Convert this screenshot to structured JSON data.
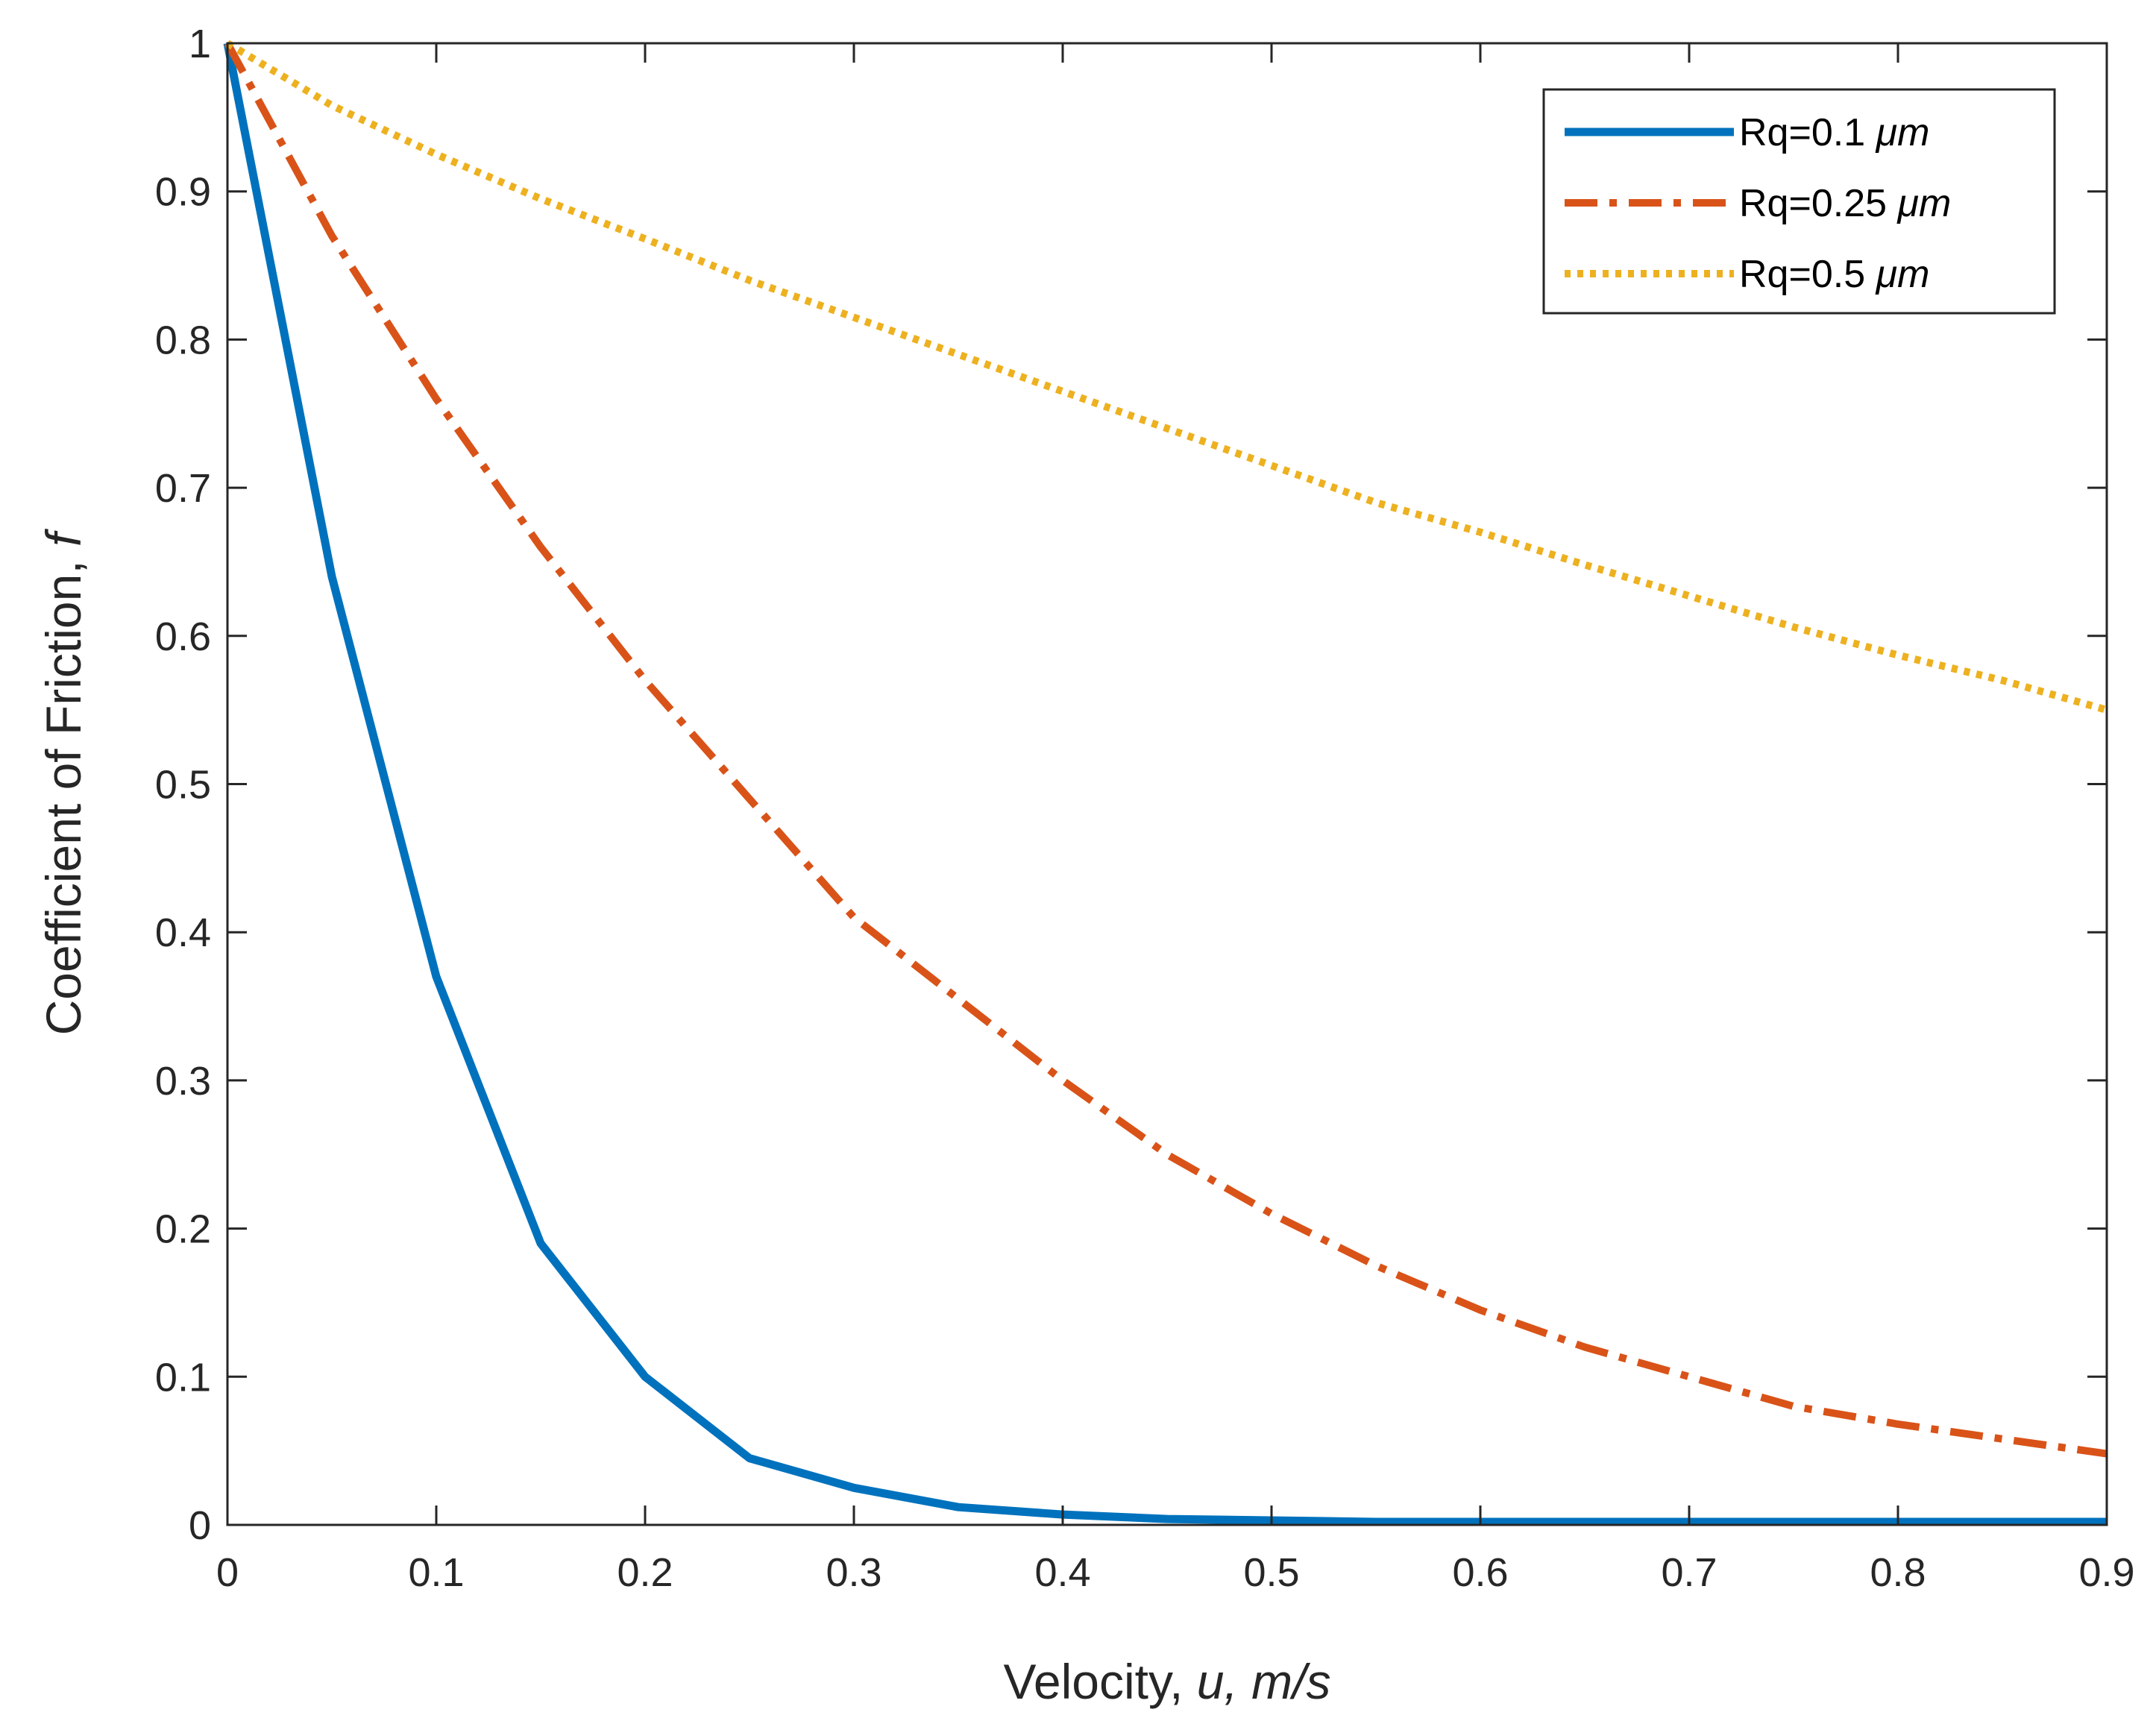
{
  "chart_data": {
    "type": "line",
    "title": "",
    "xlabel": {
      "prefix": "Velocity,  ",
      "var": "u, m/s"
    },
    "ylabel": {
      "prefix": "Coefficient of Friction,  ",
      "var": "f"
    },
    "xlim": [
      0,
      0.9
    ],
    "ylim": [
      0,
      1
    ],
    "xticks": [
      0,
      0.1,
      0.2,
      0.3,
      0.4,
      0.5,
      0.6,
      0.7,
      0.8,
      0.9
    ],
    "xtick_labels": [
      "0",
      "0.1",
      "0.2",
      "0.3",
      "0.4",
      "0.5",
      "0.6",
      "0.7",
      "0.8",
      "0.9"
    ],
    "yticks": [
      0,
      0.1,
      0.2,
      0.3,
      0.4,
      0.5,
      0.6,
      0.7,
      0.8,
      0.9,
      1
    ],
    "ytick_labels": [
      "0",
      "0.1",
      "0.2",
      "0.3",
      "0.4",
      "0.5",
      "0.6",
      "0.7",
      "0.8",
      "0.9",
      "1"
    ],
    "grid": false,
    "legend_position": "top-right",
    "x": [
      0,
      0.05,
      0.1,
      0.15,
      0.2,
      0.25,
      0.3,
      0.35,
      0.4,
      0.45,
      0.5,
      0.55,
      0.6,
      0.65,
      0.7,
      0.75,
      0.8,
      0.85,
      0.9
    ],
    "series": [
      {
        "name": "Rq=0.1",
        "unit": "μm",
        "color": "#0072BD",
        "style": "solid",
        "values": [
          1.0,
          0.64,
          0.37,
          0.19,
          0.1,
          0.045,
          0.025,
          0.012,
          0.007,
          0.004,
          0.003,
          0.002,
          0.002,
          0.002,
          0.002,
          0.002,
          0.002,
          0.002,
          0.002
        ]
      },
      {
        "name": "Rq=0.25",
        "unit": "μm",
        "color": "#D95319",
        "style": "dashdot",
        "values": [
          1.0,
          0.87,
          0.76,
          0.66,
          0.57,
          0.49,
          0.41,
          0.355,
          0.3,
          0.25,
          0.21,
          0.175,
          0.145,
          0.12,
          0.1,
          0.08,
          0.068,
          0.058,
          0.048
        ]
      },
      {
        "name": "Rq=0.5",
        "unit": "μm",
        "color": "#EDB120",
        "style": "dotted",
        "values": [
          1.0,
          0.958,
          0.925,
          0.895,
          0.868,
          0.84,
          0.815,
          0.79,
          0.765,
          0.74,
          0.715,
          0.69,
          0.67,
          0.648,
          0.627,
          0.606,
          0.587,
          0.57,
          0.55
        ]
      }
    ]
  }
}
